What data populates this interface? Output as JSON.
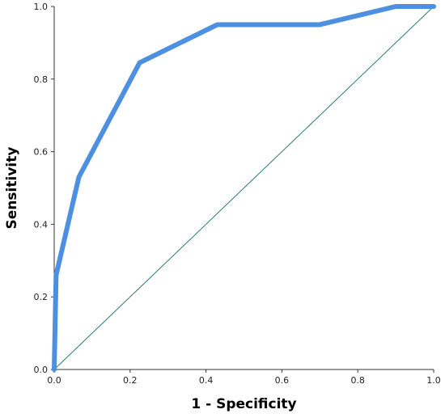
{
  "chart_data": {
    "type": "line",
    "title": "",
    "xlabel": "1 - Specificity",
    "ylabel": "Sensitivity",
    "xlim": [
      0,
      1
    ],
    "ylim": [
      0,
      1
    ],
    "grid": false,
    "x_ticks": [
      "0.0",
      "0.2",
      "0.4",
      "0.6",
      "0.8",
      "1.0"
    ],
    "y_ticks": [
      "0.0",
      "0.2",
      "0.4",
      "0.6",
      "0.8",
      "1.0"
    ],
    "series": [
      {
        "color": "#4d8fe0",
        "points": [
          [
            0.0,
            0.0
          ],
          [
            0.005,
            0.26
          ],
          [
            0.065,
            0.53
          ],
          [
            0.225,
            0.845
          ],
          [
            0.43,
            0.95
          ],
          [
            0.7,
            0.95
          ],
          [
            0.9,
            1.0
          ],
          [
            1.0,
            1.0
          ]
        ]
      },
      {
        "color": "#2a7a70",
        "points": [
          [
            0.0,
            0.0
          ],
          [
            1.0,
            1.0
          ]
        ]
      }
    ]
  }
}
